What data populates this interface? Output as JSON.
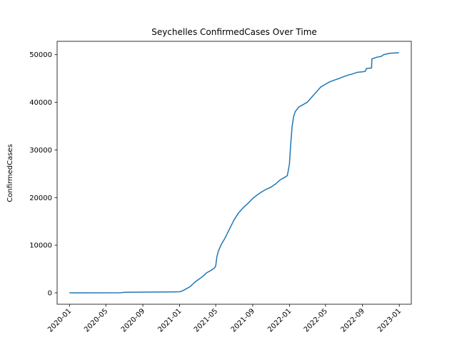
{
  "chart_data": {
    "type": "line",
    "title": "Seychelles  ConfirmedCases Over Time",
    "xlabel": "",
    "ylabel": "ConfirmedCases",
    "x_ticks": [
      "2020-01",
      "2020-05",
      "2020-09",
      "2021-01",
      "2021-05",
      "2021-09",
      "2022-01",
      "2022-05",
      "2022-09",
      "2023-01"
    ],
    "y_ticks": [
      "0",
      "10000",
      "20000",
      "30000",
      "40000",
      "50000"
    ],
    "xlim": [
      "2019-11-21",
      "2023-02-10"
    ],
    "ylim": [
      -2400,
      52800
    ],
    "grid": false,
    "legend": "none",
    "series": [
      {
        "color": "#1f77b4",
        "points": [
          [
            "2020-01-01",
            0
          ],
          [
            "2020-03-14",
            2
          ],
          [
            "2020-06-20",
            11
          ],
          [
            "2020-07-01",
            100
          ],
          [
            "2020-09-01",
            140
          ],
          [
            "2020-12-20",
            200
          ],
          [
            "2021-01-01",
            220
          ],
          [
            "2021-01-10",
            400
          ],
          [
            "2021-01-25",
            900
          ],
          [
            "2021-02-05",
            1300
          ],
          [
            "2021-02-20",
            2200
          ],
          [
            "2021-03-05",
            2800
          ],
          [
            "2021-03-20",
            3500
          ],
          [
            "2021-04-01",
            4200
          ],
          [
            "2021-04-15",
            4700
          ],
          [
            "2021-04-25",
            5100
          ],
          [
            "2021-05-01",
            5600
          ],
          [
            "2021-05-05",
            7600
          ],
          [
            "2021-05-10",
            8800
          ],
          [
            "2021-05-20",
            10200
          ],
          [
            "2021-06-01",
            11500
          ],
          [
            "2021-06-15",
            13300
          ],
          [
            "2021-07-01",
            15300
          ],
          [
            "2021-07-15",
            16700
          ],
          [
            "2021-08-01",
            17900
          ],
          [
            "2021-08-15",
            18700
          ],
          [
            "2021-09-01",
            19800
          ],
          [
            "2021-09-15",
            20500
          ],
          [
            "2021-10-01",
            21200
          ],
          [
            "2021-10-15",
            21700
          ],
          [
            "2021-11-01",
            22200
          ],
          [
            "2021-11-15",
            22800
          ],
          [
            "2021-12-01",
            23700
          ],
          [
            "2021-12-15",
            24200
          ],
          [
            "2021-12-25",
            24600
          ],
          [
            "2022-01-01",
            27000
          ],
          [
            "2022-01-05",
            31000
          ],
          [
            "2022-01-10",
            35000
          ],
          [
            "2022-01-15",
            37000
          ],
          [
            "2022-01-20",
            38000
          ],
          [
            "2022-02-01",
            39000
          ],
          [
            "2022-02-15",
            39500
          ],
          [
            "2022-03-01",
            40000
          ],
          [
            "2022-03-15",
            41000
          ],
          [
            "2022-04-01",
            42200
          ],
          [
            "2022-04-15",
            43200
          ],
          [
            "2022-05-01",
            43800
          ],
          [
            "2022-05-15",
            44300
          ],
          [
            "2022-06-01",
            44700
          ],
          [
            "2022-06-15",
            45000
          ],
          [
            "2022-07-01",
            45400
          ],
          [
            "2022-07-15",
            45700
          ],
          [
            "2022-08-01",
            46000
          ],
          [
            "2022-08-15",
            46300
          ],
          [
            "2022-09-01",
            46400
          ],
          [
            "2022-09-10",
            46500
          ],
          [
            "2022-09-14",
            47100
          ],
          [
            "2022-10-01",
            47200
          ],
          [
            "2022-10-02",
            49100
          ],
          [
            "2022-10-20",
            49500
          ],
          [
            "2022-11-01",
            49600
          ],
          [
            "2022-11-10",
            50000
          ],
          [
            "2022-12-01",
            50300
          ],
          [
            "2022-12-31",
            50400
          ]
        ]
      }
    ]
  }
}
